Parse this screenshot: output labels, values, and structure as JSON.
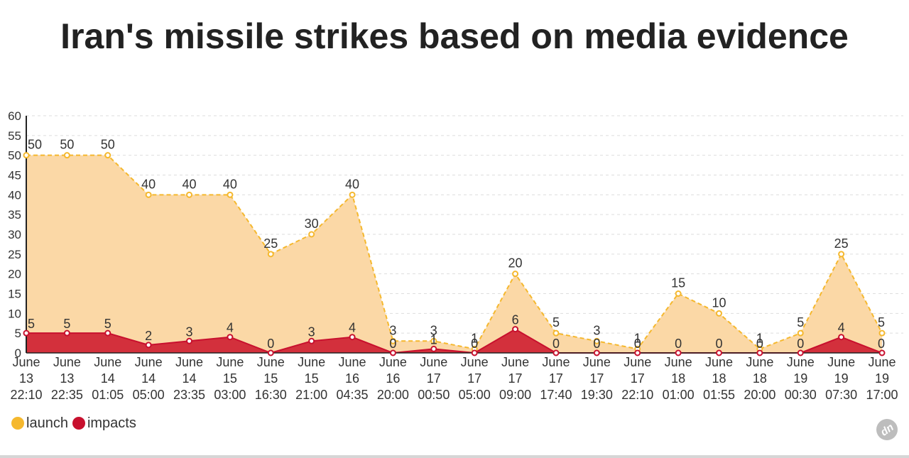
{
  "chart_data": {
    "type": "area",
    "title": "Iran's missile strikes based on media evidence",
    "categories": [
      [
        "June",
        "13",
        "22:10"
      ],
      [
        "June",
        "13",
        "22:35"
      ],
      [
        "June",
        "14",
        "01:05"
      ],
      [
        "June",
        "14",
        "05:00"
      ],
      [
        "June",
        "14",
        "23:35"
      ],
      [
        "June",
        "15",
        "03:00"
      ],
      [
        "June",
        "15",
        "16:30"
      ],
      [
        "June",
        "15",
        "21:00"
      ],
      [
        "June",
        "16",
        "04:35"
      ],
      [
        "June",
        "16",
        "20:00"
      ],
      [
        "June",
        "17",
        "00:50"
      ],
      [
        "June",
        "17",
        "05:00"
      ],
      [
        "June",
        "17",
        "09:00"
      ],
      [
        "June",
        "17",
        "17:40"
      ],
      [
        "June",
        "17",
        "19:30"
      ],
      [
        "June",
        "17",
        "22:10"
      ],
      [
        "June",
        "18",
        "01:00"
      ],
      [
        "June",
        "18",
        "01:55"
      ],
      [
        "June",
        "18",
        "20:00"
      ],
      [
        "June",
        "19",
        "00:30"
      ],
      [
        "June",
        "19",
        "07:30"
      ],
      [
        "June",
        "19",
        "17:00"
      ]
    ],
    "series": [
      {
        "name": "launch",
        "color": "#f5b82e",
        "fill": "#fbd8a6",
        "values": [
          50,
          50,
          50,
          40,
          40,
          40,
          25,
          30,
          40,
          3,
          3,
          1,
          20,
          5,
          3,
          1,
          15,
          10,
          1,
          5,
          25,
          5
        ]
      },
      {
        "name": "impacts",
        "color": "#c8102e",
        "fill": "#d3303c",
        "values": [
          5,
          5,
          5,
          2,
          3,
          4,
          0,
          3,
          4,
          0,
          1,
          0,
          6,
          0,
          0,
          0,
          0,
          0,
          0,
          0,
          4,
          0
        ]
      }
    ],
    "ylim": [
      0,
      60
    ],
    "yticks": [
      0,
      5,
      10,
      15,
      20,
      25,
      30,
      35,
      40,
      45,
      50,
      55,
      60
    ],
    "xlabel": "",
    "ylabel": "",
    "grid": true,
    "legend_position": "bottom-left"
  },
  "logo_text": "dn"
}
